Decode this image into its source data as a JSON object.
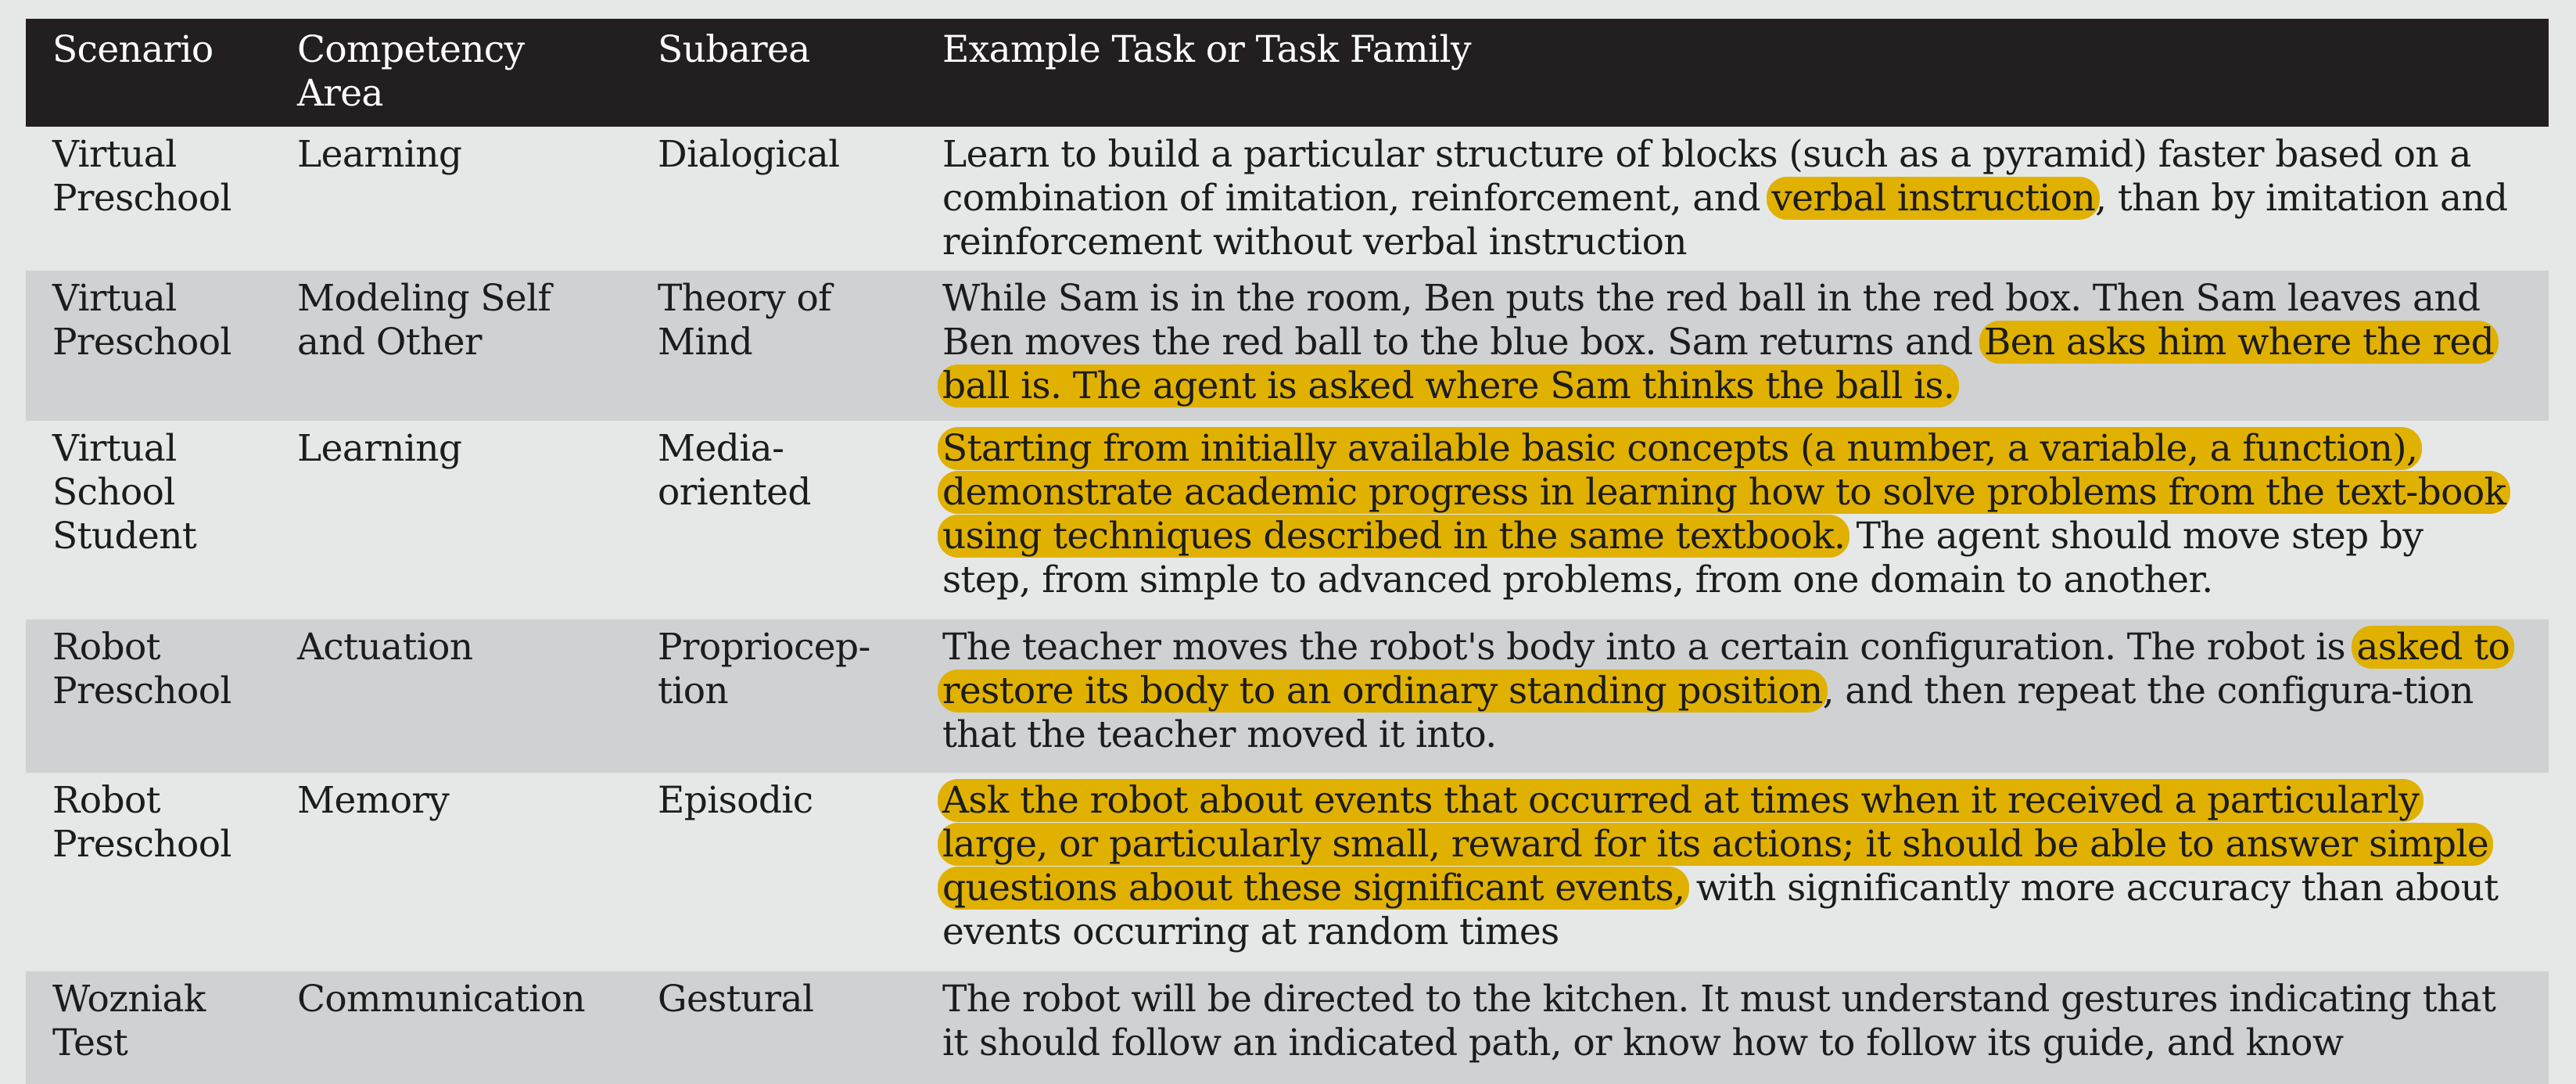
{
  "table": {
    "headers": [
      "Scenario",
      "Competency\nArea",
      "Subarea",
      "Example Task or Task Family"
    ],
    "rows": [
      {
        "scenario": "Virtual\nPreschool",
        "competency": "Learning",
        "subarea": "Dialogical",
        "task_before": "Learn to build a particular structure of blocks (such as a pyramid) faster based on a combination of imitation, reinforcement, and ",
        "task_highlight": "verbal instruction",
        "task_after": ", than by imitation and reinforcement without verbal instruction"
      },
      {
        "scenario": "Virtual\nPreschool",
        "competency": "Modeling Self\nand Other",
        "subarea": "Theory of\nMind",
        "task_before": "While Sam is in the room, Ben puts the red ball in the red box. Then Sam leaves and Ben moves the red ball to the blue box. Sam returns and ",
        "task_highlight": "Ben asks him where the red ball is. The agent is asked where Sam thinks the ball is.",
        "task_after": ""
      },
      {
        "scenario": "Virtual\nSchool\nStudent",
        "competency": "Learning",
        "subarea": "Media-\noriented",
        "task_before": "",
        "task_highlight": "Starting from initially available basic concepts (a number, a variable, a function), demonstrate academic progress in learning how to solve problems from the text-book using techniques described in the same textbook.",
        "task_after": " The agent should move step by step, from simple to advanced problems, from one domain to another."
      },
      {
        "scenario": "Robot\nPreschool",
        "competency": "Actuation",
        "subarea": "Propriocep-\ntion",
        "task_before": "The teacher moves the robot's body into a certain configuration. The robot is ",
        "task_highlight": "asked to restore its body to an ordinary standing position",
        "task_after": ", and then repeat the configura-tion that the teacher moved it into."
      },
      {
        "scenario": "Robot\nPreschool",
        "competency": "Memory",
        "subarea": "Episodic",
        "task_before": "",
        "task_highlight": "Ask the robot about events that occurred at times when it received a particularly large, or particularly small, reward for its actions; it should be able to answer simple questions about these significant events,",
        "task_after": " with significantly more accuracy than about events occurring at random times"
      },
      {
        "scenario": "Wozniak\nTest",
        "competency": "Communication",
        "subarea": "Gestural",
        "task_before": "The robot will be directed to the kitchen. It must understand gestures indicating that it should follow an indicated path, or know how to follow its guide, and know",
        "task_highlight": "",
        "task_after": ""
      }
    ]
  },
  "colors": {
    "header_bg": "#231f20",
    "row_alt_bg": "#d0d1d2",
    "row_bg": "#e6e8e8",
    "highlight": "#e0b100"
  }
}
